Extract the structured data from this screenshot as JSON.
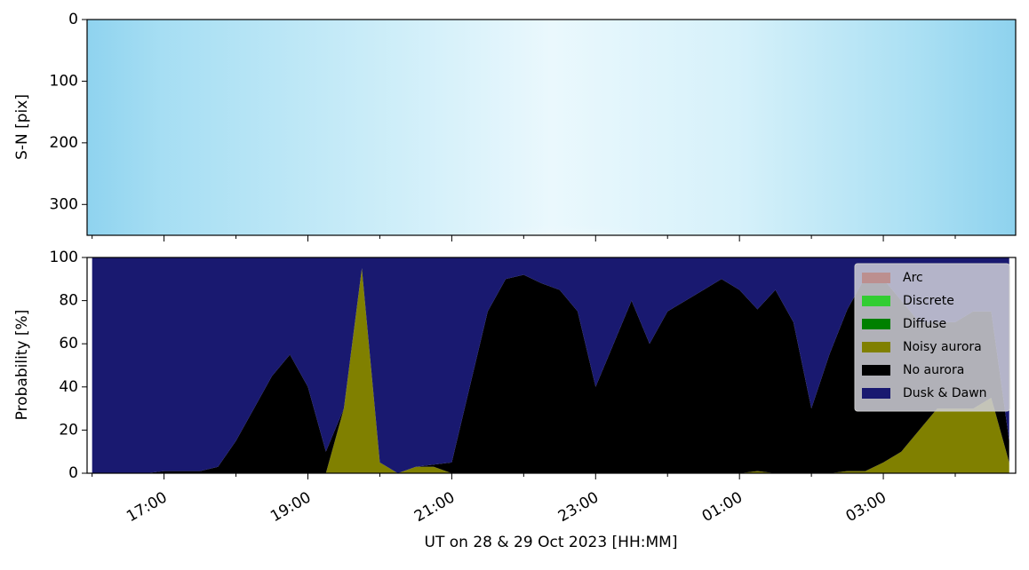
{
  "chart_data": [
    {
      "type": "image",
      "ylabel": "S-N [pix]",
      "ylim": [
        350,
        0
      ],
      "yticks": [
        0,
        100,
        200,
        300
      ]
    },
    {
      "type": "area",
      "stacked": true,
      "ylabel": "Probability [%]",
      "xlabel": "UT on 28 & 29 Oct 2023 [HH:MM]",
      "xlim": [
        15.93,
        28.84
      ],
      "ylim": [
        0,
        100
      ],
      "yticks": [
        0,
        20,
        40,
        60,
        80,
        100
      ],
      "xticks": [
        {
          "value": 17,
          "label": "17:00"
        },
        {
          "value": 19,
          "label": "19:00"
        },
        {
          "value": 21,
          "label": "21:00"
        },
        {
          "value": 23,
          "label": "23:00"
        },
        {
          "value": 25,
          "label": "01:00"
        },
        {
          "value": 27,
          "label": "03:00"
        }
      ],
      "xminorticks": [
        16,
        18,
        20,
        22,
        24,
        26,
        28
      ],
      "legend": "upper right",
      "x": [
        16,
        16.25,
        16.5,
        16.75,
        17,
        17.25,
        17.5,
        17.75,
        18,
        18.25,
        18.5,
        18.75,
        19,
        19.25,
        19.5,
        19.75,
        20,
        20.25,
        20.5,
        20.75,
        21,
        21.25,
        21.5,
        21.75,
        22,
        22.25,
        22.5,
        22.75,
        23,
        23.25,
        23.5,
        23.75,
        24,
        24.25,
        24.5,
        24.75,
        25,
        25.25,
        25.5,
        25.75,
        26,
        26.25,
        26.5,
        26.75,
        27,
        27.25,
        27.5,
        27.75,
        28,
        28.25,
        28.5,
        28.75
      ],
      "series": [
        {
          "name": "Arc",
          "color": "#bc8f8f",
          "values": [
            0,
            0,
            0,
            0,
            0,
            0,
            0,
            0,
            0,
            0,
            0,
            0,
            0,
            0,
            0,
            0,
            0,
            0,
            0,
            0,
            0,
            0,
            0,
            0,
            0,
            0,
            0,
            0,
            0,
            0,
            0,
            0,
            0,
            0,
            0,
            0,
            0,
            0,
            0,
            0,
            0,
            0,
            0,
            0,
            0,
            0,
            0,
            0,
            0,
            0,
            0,
            0
          ]
        },
        {
          "name": "Discrete",
          "color": "#32cd32",
          "values": [
            0,
            0,
            0,
            0,
            0,
            0,
            0,
            0,
            0,
            0,
            0,
            0,
            0,
            0,
            0,
            0,
            0,
            0,
            0,
            0,
            0,
            0,
            0,
            0,
            0,
            0,
            0,
            0,
            0,
            0,
            0,
            0,
            0,
            0,
            0,
            0,
            0,
            0,
            0,
            0,
            0,
            0,
            0,
            0,
            0,
            0,
            0,
            0,
            0,
            0,
            0,
            0
          ]
        },
        {
          "name": "Diffuse",
          "color": "#008000",
          "values": [
            0,
            0,
            0,
            0,
            0,
            0,
            0,
            0,
            0,
            0,
            0,
            0,
            0,
            0,
            0,
            0,
            0,
            0,
            0,
            0,
            0,
            0,
            0,
            0,
            0,
            0,
            0,
            0,
            0,
            0,
            0,
            0,
            0,
            0,
            0,
            0,
            0,
            0,
            0,
            0,
            0,
            0,
            0,
            0,
            0,
            0,
            0,
            0,
            0,
            0,
            0,
            0
          ]
        },
        {
          "name": "Noisy aurora",
          "color": "#808000",
          "values": [
            0,
            0,
            0,
            0,
            0,
            0,
            0,
            0,
            0,
            0,
            0,
            0,
            0,
            0,
            30,
            95,
            5,
            0,
            3,
            3,
            0,
            0,
            0,
            0,
            0,
            0,
            0,
            0,
            0,
            0,
            0,
            0,
            0,
            0,
            0,
            0,
            0,
            1,
            0,
            0,
            0,
            0,
            1,
            1,
            5,
            10,
            20,
            30,
            30,
            30,
            35,
            5
          ]
        },
        {
          "name": "No aurora",
          "color": "#000000",
          "values": [
            0,
            0,
            0,
            0,
            1,
            1,
            1,
            3,
            15,
            30,
            45,
            55,
            40,
            10,
            0,
            0,
            0,
            0,
            0,
            1,
            5,
            40,
            75,
            90,
            92,
            88,
            85,
            75,
            40,
            60,
            80,
            60,
            75,
            80,
            85,
            90,
            85,
            75,
            85,
            70,
            30,
            55,
            75,
            90,
            85,
            70,
            50,
            40,
            40,
            45,
            40,
            10
          ]
        },
        {
          "name": "Dusk & Dawn",
          "color": "#191970",
          "values": [
            100,
            100,
            100,
            100,
            99,
            99,
            99,
            97,
            85,
            70,
            55,
            45,
            60,
            90,
            70,
            5,
            95,
            100,
            97,
            96,
            95,
            60,
            25,
            10,
            8,
            12,
            15,
            25,
            60,
            40,
            20,
            40,
            25,
            20,
            15,
            10,
            15,
            24,
            15,
            30,
            70,
            45,
            24,
            9,
            10,
            20,
            30,
            30,
            30,
            25,
            25,
            85
          ]
        }
      ]
    }
  ]
}
